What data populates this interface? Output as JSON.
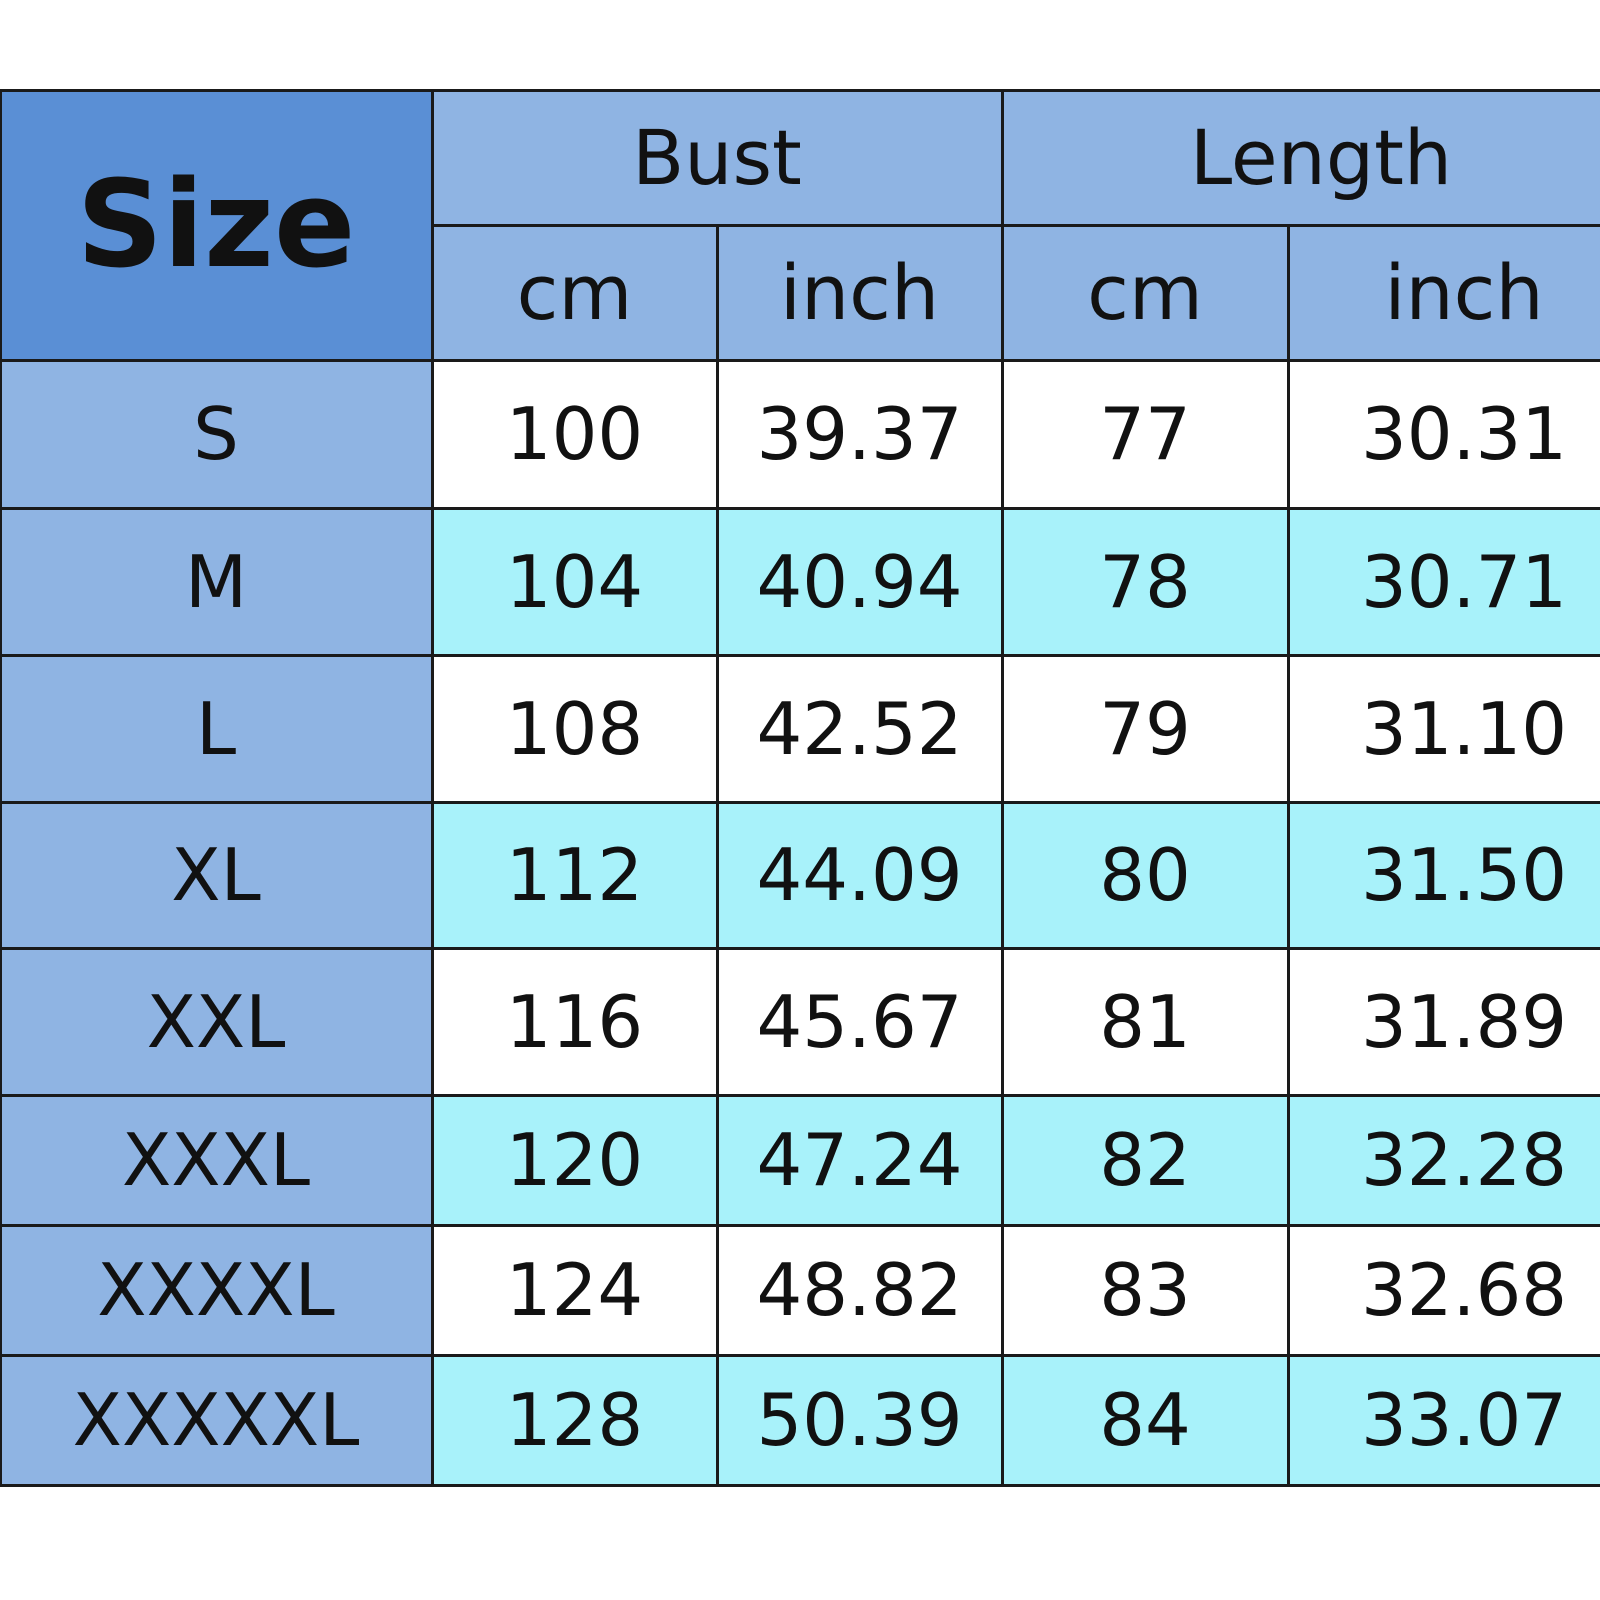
{
  "header": {
    "size_label": "Size",
    "groups": [
      "Bust",
      "Length"
    ],
    "units": [
      "cm",
      "inch",
      "cm",
      "inch"
    ]
  },
  "rows": [
    {
      "size": "S",
      "values": [
        "100",
        "39.37",
        "77",
        "30.31"
      ]
    },
    {
      "size": "M",
      "values": [
        "104",
        "40.94",
        "78",
        "30.71"
      ]
    },
    {
      "size": "L",
      "values": [
        "108",
        "42.52",
        "79",
        "31.10"
      ]
    },
    {
      "size": "XL",
      "values": [
        "112",
        "44.09",
        "80",
        "31.50"
      ]
    },
    {
      "size": "XXL",
      "values": [
        "116",
        "45.67",
        "81",
        "31.89"
      ]
    },
    {
      "size": "XXXL",
      "values": [
        "120",
        "47.24",
        "82",
        "32.28"
      ]
    },
    {
      "size": "XXXXL",
      "values": [
        "124",
        "48.82",
        "83",
        "32.68"
      ]
    },
    {
      "size": "XXXXXL",
      "values": [
        "128",
        "50.39",
        "84",
        "33.07"
      ]
    }
  ],
  "colors": {
    "size_header": "#5a8fd5",
    "header": "#8fb4e3",
    "row_alt": "#a8f2fa",
    "row": "#ffffff"
  }
}
